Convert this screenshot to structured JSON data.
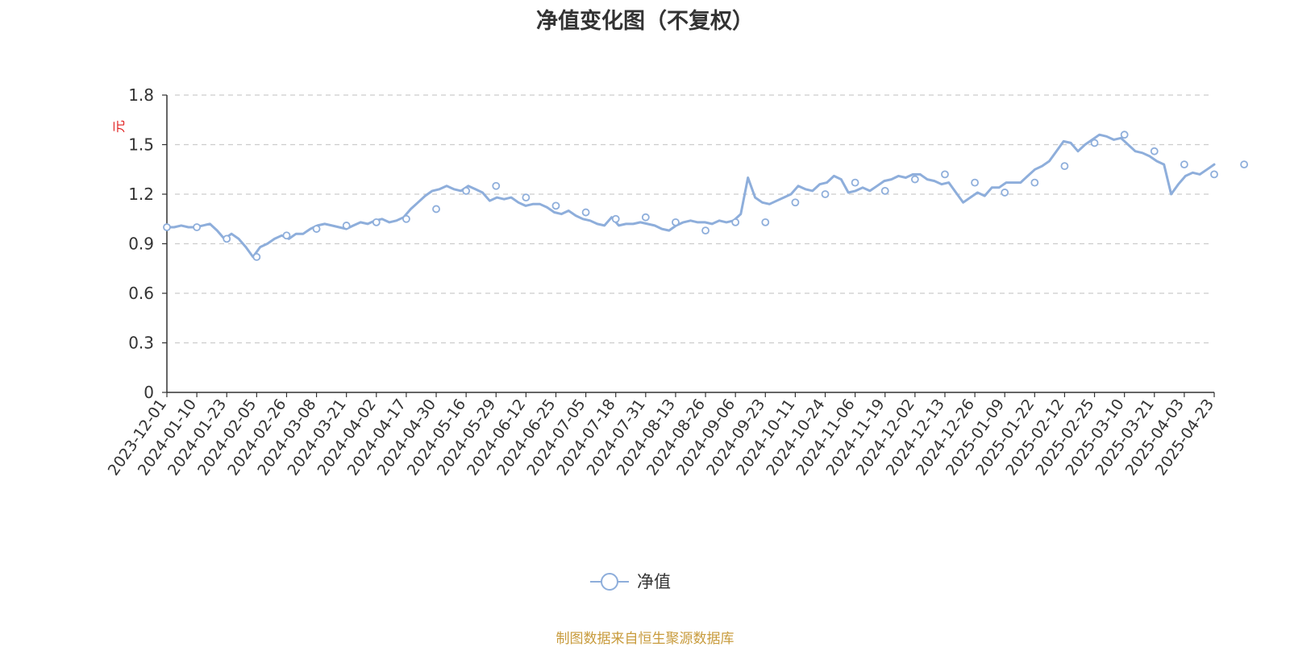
{
  "chart_data": {
    "type": "line",
    "title": "净值变化图（不复权）",
    "ylabel": "元",
    "xlabel": "",
    "ylim": [
      0,
      1.8
    ],
    "y_ticks": [
      "0",
      "0.3",
      "0.6",
      "0.9",
      "1.2",
      "1.5",
      "1.8"
    ],
    "grid": true,
    "legend_position": "bottom-center",
    "x_tick_labels": [
      "2023-12-01",
      "2024-01-10",
      "2024-01-23",
      "2024-02-05",
      "2024-02-26",
      "2024-03-08",
      "2024-03-21",
      "2024-04-02",
      "2024-04-17",
      "2024-04-30",
      "2024-05-16",
      "2024-05-29",
      "2024-06-12",
      "2024-06-25",
      "2024-07-05",
      "2024-07-18",
      "2024-07-31",
      "2024-08-13",
      "2024-08-26",
      "2024-09-06",
      "2024-09-23",
      "2024-10-11",
      "2024-10-24",
      "2024-11-06",
      "2024-11-19",
      "2024-12-02",
      "2024-12-13",
      "2024-12-26",
      "2025-01-09",
      "2025-01-22",
      "2025-02-12",
      "2025-02-25",
      "2025-03-10",
      "2025-03-21",
      "2025-04-03",
      "2025-04-23"
    ],
    "series": [
      {
        "name": "净值",
        "color": "#8eaedb",
        "values": [
          1.0,
          1.0,
          1.01,
          1.0,
          1.0,
          1.01,
          1.02,
          0.98,
          0.93,
          0.96,
          0.93,
          0.88,
          0.82,
          0.88,
          0.9,
          0.93,
          0.95,
          0.93,
          0.96,
          0.96,
          0.99,
          1.01,
          1.02,
          1.01,
          1.0,
          0.99,
          1.01,
          1.03,
          1.02,
          1.04,
          1.05,
          1.03,
          1.04,
          1.06,
          1.11,
          1.15,
          1.19,
          1.22,
          1.23,
          1.25,
          1.23,
          1.22,
          1.25,
          1.23,
          1.21,
          1.16,
          1.18,
          1.17,
          1.18,
          1.15,
          1.13,
          1.14,
          1.14,
          1.12,
          1.09,
          1.08,
          1.1,
          1.07,
          1.05,
          1.04,
          1.02,
          1.01,
          1.06,
          1.01,
          1.02,
          1.02,
          1.03,
          1.02,
          1.01,
          0.99,
          0.98,
          1.01,
          1.03,
          1.04,
          1.03,
          1.03,
          1.02,
          1.04,
          1.03,
          1.04,
          1.08,
          1.3,
          1.18,
          1.15,
          1.14,
          1.16,
          1.18,
          1.2,
          1.25,
          1.23,
          1.22,
          1.26,
          1.27,
          1.31,
          1.29,
          1.21,
          1.22,
          1.24,
          1.22,
          1.25,
          1.28,
          1.29,
          1.31,
          1.3,
          1.32,
          1.32,
          1.29,
          1.28,
          1.26,
          1.27,
          1.21,
          1.15,
          1.18,
          1.21,
          1.19,
          1.24,
          1.24,
          1.27,
          1.27,
          1.27,
          1.31,
          1.35,
          1.37,
          1.4,
          1.46,
          1.52,
          1.51,
          1.46,
          1.5,
          1.53,
          1.56,
          1.55,
          1.53,
          1.54,
          1.5,
          1.46,
          1.45,
          1.43,
          1.4,
          1.38,
          1.2,
          1.26,
          1.31,
          1.33,
          1.32,
          1.35,
          1.38
        ],
        "marker_values": [
          1.0,
          1.0,
          0.93,
          0.82,
          0.95,
          0.99,
          1.01,
          1.03,
          1.05,
          1.11,
          1.22,
          1.25,
          1.18,
          1.13,
          1.09,
          1.05,
          1.06,
          1.03,
          0.98,
          1.03,
          1.03,
          1.15,
          1.2,
          1.27,
          1.22,
          1.29,
          1.32,
          1.27,
          1.21,
          1.27,
          1.37,
          1.51,
          1.56,
          1.46,
          1.38,
          1.32,
          1.38
        ]
      }
    ]
  },
  "legend": {
    "label": "净值"
  },
  "footer": {
    "source": "制图数据来自恒生聚源数据库"
  }
}
